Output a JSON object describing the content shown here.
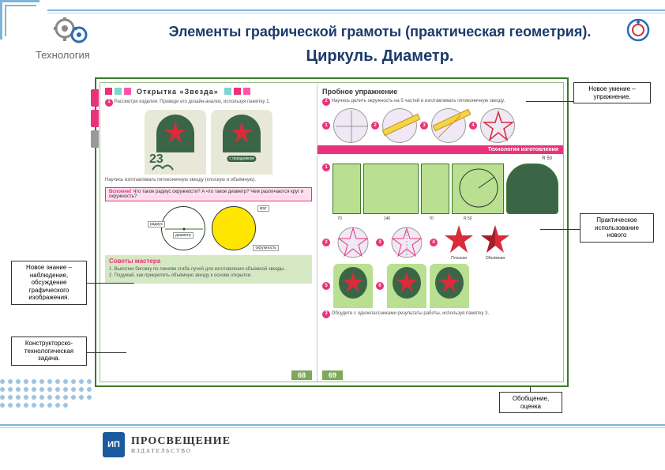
{
  "header": {
    "title": "Элементы графической грамоты (практическая геометрия).",
    "subtitle": "Циркуль. Диаметр.",
    "subject": "Технология"
  },
  "callouts": {
    "c1": "Новое умение – упражнение.",
    "c2": "Практическое использование нового",
    "c3": "Новое знание – наблюдение, обсуждение графического изображения.",
    "c4": "Конструкторско-технологическая задача.",
    "c5": "Обобщение, оценка"
  },
  "left_page": {
    "section": "Открытка  «Звезда»",
    "intro": "Рассмотри изделия. Проведи его дизайн-анализ, используя памятку 1.",
    "card1_num": "23",
    "card2_text": "с праздником",
    "mid_text": "Научись изготавливать пятиконечную звезду (плоскую и объёмную).",
    "warn_label": "Вспомни!",
    "warn_text": "Что такое радиус окружности? А что такое диаметр? Чем различаются круг и окружность?",
    "radius": "радиус",
    "diameter": "диаметр",
    "circle": "круг",
    "circumference": "окружность",
    "tips_title": "Советы мастера",
    "tips": "1. Выполни биговку по линиям сгиба лучей для изготовления объёмной звезды.\n2. Подумай, как прикрепить объёмную звезду к основе открытки.",
    "page_num": "68"
  },
  "right_page": {
    "title": "Пробное упражнение",
    "intro": "Научись делить окружность на 5 частей и изготавливать пятиконечную звезду.",
    "tech": "Технология изготовления",
    "r50": "R 50",
    "d70": "70",
    "d140": "140",
    "flat": "Плоская",
    "volume": "Объёмная",
    "discuss": "Обсудите с одноклассниками результаты работы, используя памятку 3.",
    "page_num": "69"
  },
  "publisher": {
    "badge": "ИП",
    "name": "ПРОСВЕЩЕНИЕ",
    "sub": "ИЗДАТЕЛЬСТВО"
  },
  "colors": {
    "pink": "#e8337a",
    "green": "#3a7a2a",
    "blue": "#1b3a6b",
    "lblue": "#7fb4d8",
    "yellow": "#ffe600",
    "lgreen": "#b8e090"
  }
}
